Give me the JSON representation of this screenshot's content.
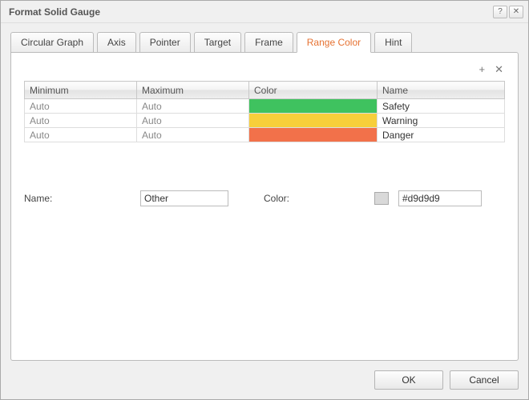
{
  "dialog": {
    "title": "Format Solid Gauge",
    "help_glyph": "?",
    "close_glyph": "✕"
  },
  "tabs": {
    "items": [
      {
        "label": "Circular Graph"
      },
      {
        "label": "Axis"
      },
      {
        "label": "Pointer"
      },
      {
        "label": "Target"
      },
      {
        "label": "Frame"
      },
      {
        "label": "Range Color"
      },
      {
        "label": "Hint"
      }
    ],
    "active_index": 5
  },
  "toolbar": {
    "add_glyph": "+",
    "remove_glyph": "✕"
  },
  "table": {
    "columns": [
      "Minimum",
      "Maximum",
      "Color",
      "Name"
    ],
    "col_widths": [
      "140px",
      "140px",
      "160px",
      "auto"
    ],
    "rows": [
      {
        "min": "Auto",
        "max": "Auto",
        "color": "#3fc25f",
        "name": "Safety"
      },
      {
        "min": "Auto",
        "max": "Auto",
        "color": "#f7cf3b",
        "name": "Warning"
      },
      {
        "min": "Auto",
        "max": "Auto",
        "color": "#f2714a",
        "name": "Danger"
      }
    ]
  },
  "form": {
    "name_label": "Name:",
    "name_value": "Other",
    "color_label": "Color:",
    "color_chip": "#d9d9d9",
    "color_value": "#d9d9d9"
  },
  "footer": {
    "ok_label": "OK",
    "cancel_label": "Cancel"
  }
}
